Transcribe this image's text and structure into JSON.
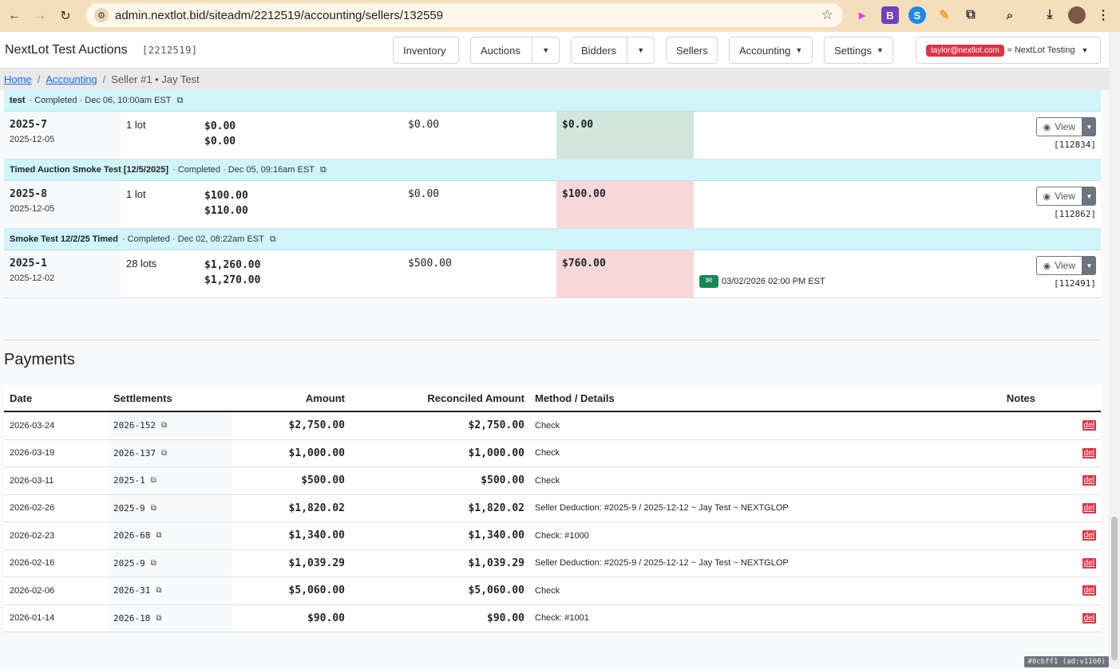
{
  "browser": {
    "url": "admin.nextlot.bid/siteadm/2212519/accounting/sellers/132559"
  },
  "nav": {
    "brand": "NextLot Test Auctions",
    "site_id": "[2212519]",
    "inventory": "Inventory",
    "auctions": "Auctions",
    "bidders": "Bidders",
    "sellers": "Sellers",
    "accounting": "Accounting",
    "settings": "Settings",
    "user_email": "taylor@nextlot.com",
    "account_name": "≈ NextLot Testing"
  },
  "breadcrumb": {
    "home": "Home",
    "accounting": "Accounting",
    "current": "Seller #1 • Jay Test"
  },
  "groups": [
    {
      "auction": "test",
      "status": "· Completed · Dec 06, 10:00am EST",
      "number": "2025-7",
      "date": "2025-12-05",
      "lots": "1 lot",
      "amount1": "$0.00",
      "amount2": "$0.00",
      "paid": "$0.00",
      "balance": "$0.00",
      "balance_state": "ok",
      "scheduled": "",
      "view": "View",
      "ref": "[112834]"
    },
    {
      "auction": "Timed Auction Smoke Test [12/5/2025]",
      "status": "· Completed · Dec 05, 09:16am EST",
      "number": "2025-8",
      "date": "2025-12-05",
      "lots": "1 lot",
      "amount1": "$100.00",
      "amount2": "$110.00",
      "paid": "$0.00",
      "balance": "$100.00",
      "balance_state": "due",
      "scheduled": "",
      "view": "View",
      "ref": "[112862]"
    },
    {
      "auction": "Smoke Test 12/2/25 Timed",
      "status": "· Completed · Dec 02, 08:22am EST",
      "number": "2025-1",
      "date": "2025-12-02",
      "lots": "28 lots",
      "amount1": "$1,260.00",
      "amount2": "$1,270.00",
      "paid": "$500.00",
      "balance": "$760.00",
      "balance_state": "due",
      "scheduled": "03/02/2026 02:00 PM EST",
      "view": "View",
      "ref": "[112491]"
    }
  ],
  "payments": {
    "title": "Payments",
    "headers": {
      "date": "Date",
      "settlements": "Settlements",
      "amount": "Amount",
      "reconciled": "Reconciled Amount",
      "method": "Method / Details",
      "notes": "Notes"
    },
    "delete_label": "del",
    "rows": [
      {
        "date": "2026-03-24",
        "settlement": "2026-152",
        "amount": "$2,750.00",
        "reconciled": "$2,750.00",
        "method": "Check"
      },
      {
        "date": "2026-03-19",
        "settlement": "2026-137",
        "amount": "$1,000.00",
        "reconciled": "$1,000.00",
        "method": "Check"
      },
      {
        "date": "2026-03-11",
        "settlement": "2025-1",
        "amount": "$500.00",
        "reconciled": "$500.00",
        "method": "Check"
      },
      {
        "date": "2026-02-26",
        "settlement": "2025-9",
        "amount": "$1,820.02",
        "reconciled": "$1,820.02",
        "method": "Seller Deduction: #2025-9 / 2025-12-12 ~ Jay Test ~ NEXTGLOP"
      },
      {
        "date": "2026-02-23",
        "settlement": "2026-68",
        "amount": "$1,340.00",
        "reconciled": "$1,340.00",
        "method": "Check: #1000"
      },
      {
        "date": "2026-02-16",
        "settlement": "2025-9",
        "amount": "$1,039.29",
        "reconciled": "$1,039.29",
        "method": "Seller Deduction: #2025-9 / 2025-12-12 ~ Jay Test ~ NEXTGLOP"
      },
      {
        "date": "2026-02-06",
        "settlement": "2026-31",
        "amount": "$5,060.00",
        "reconciled": "$5,060.00",
        "method": "Check"
      },
      {
        "date": "2026-01-14",
        "settlement": "2026-18",
        "amount": "$90.00",
        "reconciled": "$90.00",
        "method": "Check: #1001"
      }
    ]
  },
  "version_badge": "#8cbff1 (ad:v1160)",
  "colors": {
    "balance_ok": "#d1e7dd",
    "balance_due": "#f8d7da",
    "group_header": "#cff4fc",
    "delete": "#dc3545"
  }
}
